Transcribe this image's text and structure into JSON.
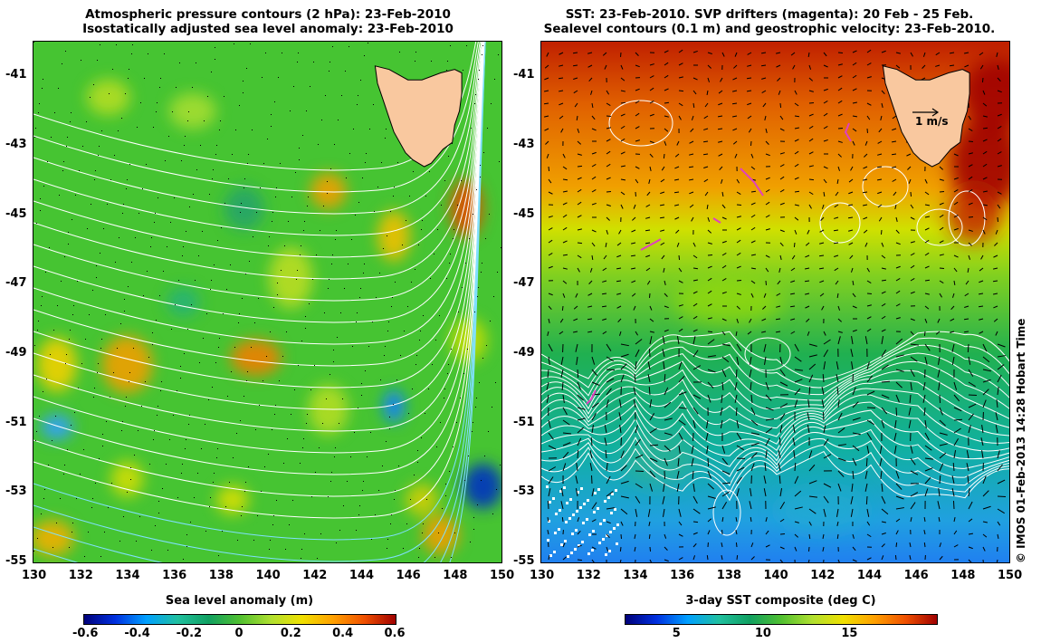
{
  "left_panel": {
    "title_line1": "Atmospheric pressure contours (2 hPa): 23-Feb-2010",
    "title_line2": "Isostatically adjusted sea level anomaly: 23-Feb-2010",
    "colorbar_title": "Sea level anomaly (m)",
    "colorbar_ticks": [
      "-0.6",
      "-0.4",
      "-0.2",
      "0",
      "0.2",
      "0.4",
      "0.6"
    ],
    "colorbar_range": [
      -0.6,
      0.6
    ]
  },
  "right_panel": {
    "title_line1": "SST: 23-Feb-2010. SVP drifters (magenta): 20 Feb - 25 Feb.",
    "title_line2": "Sealevel contours (0.1 m) and geostrophic velocity: 23-Feb-2010.",
    "colorbar_title": "3-day SST composite (deg C)",
    "colorbar_ticks": [
      "5",
      "10",
      "15"
    ],
    "colorbar_range": [
      2,
      20
    ],
    "vector_scale_label": "1 m/s"
  },
  "axes": {
    "lon_ticks": [
      "130",
      "132",
      "134",
      "136",
      "138",
      "140",
      "142",
      "144",
      "146",
      "148",
      "150"
    ],
    "lat_ticks": [
      "-41",
      "-43",
      "-45",
      "-47",
      "-49",
      "-51",
      "-53",
      "-55"
    ],
    "lon_range": [
      130,
      150
    ],
    "lat_range": [
      -55,
      -40
    ]
  },
  "credit": "© IMOS 01-Feb-2013 14:28 Hobart Time",
  "colors": {
    "land": "#f9c89f",
    "contour": "#ffffff",
    "drifter": "#e040c0",
    "arrow": "#000000"
  }
}
